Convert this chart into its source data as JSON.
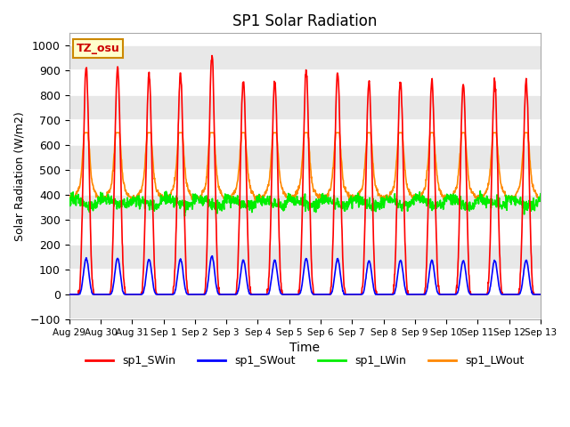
{
  "title": "SP1 Solar Radiation",
  "xlabel": "Time",
  "ylabel": "Solar Radiation (W/m2)",
  "ylim": [
    -100,
    1050
  ],
  "yticks": [
    -100,
    0,
    100,
    200,
    300,
    400,
    500,
    600,
    700,
    800,
    900,
    1000
  ],
  "bg_color": "#ffffff",
  "band_color": "#e8e8e8",
  "grid_color": "#ffffff",
  "annotation_text": "TZ_osu",
  "annotation_bg": "#ffffcc",
  "annotation_border": "#cc8800",
  "colors": {
    "sp1_SWin": "#ff0000",
    "sp1_SWout": "#0000ff",
    "sp1_LWin": "#00ee00",
    "sp1_LWout": "#ff8800"
  },
  "linewidth": 1.2,
  "tick_labels": [
    "Aug 29",
    "Aug 30",
    "Aug 31",
    "Sep 1",
    "Sep 2",
    "Sep 3",
    "Sep 4",
    "Sep 5",
    "Sep 6",
    "Sep 7",
    "Sep 8",
    "Sep 9",
    "Sep 10",
    "Sep 11",
    "Sep 12",
    "Sep 13"
  ]
}
